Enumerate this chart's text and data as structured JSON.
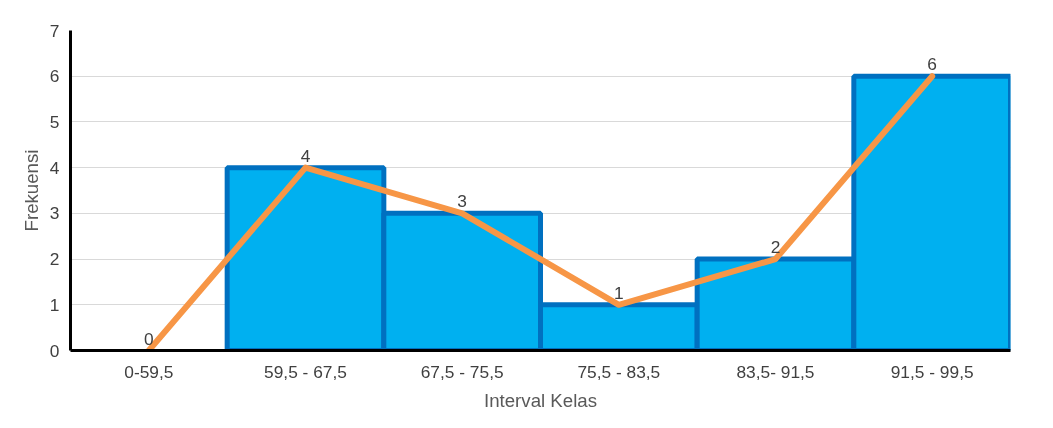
{
  "chart_data": {
    "type": "bar",
    "xlabel": "Interval Kelas",
    "ylabel": "Frekuensi",
    "categories": [
      "0-59,5",
      "59,5 - 67,5",
      "67,5 - 75,5",
      "75,5 - 83,5",
      "83,5- 91,5",
      "91,5 - 99,5"
    ],
    "series": [
      {
        "color": "#00b0f0",
        "values": [
          0,
          4,
          3,
          1,
          2,
          6
        ]
      },
      {
        "type": "line",
        "color": "#f79646",
        "values": [
          0,
          4,
          3,
          1,
          2,
          6
        ],
        "value_labels": [
          "0",
          "4",
          "3",
          "1",
          "2",
          "6"
        ]
      }
    ],
    "ylim": [
      0,
      7
    ],
    "yticks": [
      0,
      1,
      2,
      3,
      4,
      5,
      6,
      7
    ],
    "grid": "y"
  }
}
